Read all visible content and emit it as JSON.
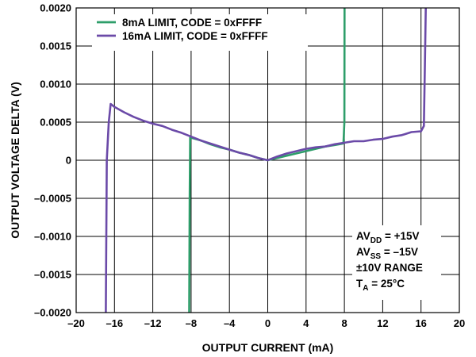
{
  "chart_data": {
    "type": "line",
    "xlabel": "OUTPUT CURRENT (mA)",
    "ylabel": "OUTPUT VOLTAGE DELTA (V)",
    "xlim": [
      -20,
      20
    ],
    "ylim": [
      -0.002,
      0.002
    ],
    "x_ticks": [
      -20,
      -16,
      -12,
      -8,
      -4,
      0,
      4,
      8,
      12,
      16,
      20
    ],
    "x_tick_labels": [
      "–20",
      "–16",
      "–12",
      "–8",
      "–4",
      "0",
      "4",
      "8",
      "12",
      "16",
      "20"
    ],
    "y_ticks": [
      0.002,
      0.0015,
      0.001,
      0.0005,
      0,
      -0.0005,
      -0.001,
      -0.0015,
      -0.002
    ],
    "y_tick_labels": [
      "0.0020",
      "0.0015",
      "0.0010",
      "0.0005",
      "0",
      "–0.0005",
      "–0.0010",
      "–0.0015",
      "–0.0020"
    ],
    "grid": true,
    "legend_position": "top-left",
    "series": [
      {
        "name": "8mA LIMIT, CODE = 0xFFFF",
        "color": "#2e9e6a",
        "points": [
          [
            -8.2,
            -0.002
          ],
          [
            -8.15,
            -0.0005
          ],
          [
            -8.1,
            0.0003
          ],
          [
            -7,
            0.00026
          ],
          [
            -6,
            0.00021
          ],
          [
            -5,
            0.00017
          ],
          [
            -4,
            0.00014
          ],
          [
            -3,
            0.0001
          ],
          [
            -2,
            7e-05
          ],
          [
            -1,
            3e-05
          ],
          [
            0,
            0.0
          ],
          [
            1,
            3e-05
          ],
          [
            2,
            6e-05
          ],
          [
            3,
            9e-05
          ],
          [
            4,
            0.00012
          ],
          [
            5,
            0.00015
          ],
          [
            6,
            0.00018
          ],
          [
            7,
            0.0002
          ],
          [
            7.9,
            0.00022
          ],
          [
            8,
            0.0005
          ],
          [
            8.02,
            0.002
          ]
        ]
      },
      {
        "name": "16mA LIMIT, CODE = 0xFFFF",
        "color": "#6b4aa8",
        "points": [
          [
            -16.9,
            -0.002
          ],
          [
            -16.85,
            -0.001
          ],
          [
            -16.8,
            0.0
          ],
          [
            -16.6,
            0.0005
          ],
          [
            -16.4,
            0.00074
          ],
          [
            -16,
            0.0007
          ],
          [
            -15,
            0.00063
          ],
          [
            -14,
            0.00057
          ],
          [
            -13,
            0.00052
          ],
          [
            -12,
            0.00048
          ],
          [
            -11,
            0.00045
          ],
          [
            -10,
            0.0004
          ],
          [
            -9,
            0.00036
          ],
          [
            -8,
            0.00031
          ],
          [
            -7,
            0.00026
          ],
          [
            -6,
            0.00022
          ],
          [
            -5,
            0.00018
          ],
          [
            -4,
            0.00014
          ],
          [
            -3,
            0.0001
          ],
          [
            -2,
            7e-05
          ],
          [
            -1,
            3e-05
          ],
          [
            0,
            0.0
          ],
          [
            1,
            5e-05
          ],
          [
            2,
            9e-05
          ],
          [
            3,
            0.00012
          ],
          [
            4,
            0.00015
          ],
          [
            5,
            0.00017
          ],
          [
            6,
            0.00018
          ],
          [
            7,
            0.00021
          ],
          [
            8,
            0.00023
          ],
          [
            9,
            0.00025
          ],
          [
            10,
            0.00025
          ],
          [
            11,
            0.00027
          ],
          [
            12,
            0.00028
          ],
          [
            13,
            0.00031
          ],
          [
            14,
            0.00033
          ],
          [
            15,
            0.00037
          ],
          [
            16,
            0.00038
          ],
          [
            16.3,
            0.00045
          ],
          [
            16.4,
            0.0012
          ],
          [
            16.5,
            0.002
          ]
        ]
      }
    ],
    "annotation_lines": [
      {
        "main": "AV",
        "sub": "DD",
        "rest": " = +15V"
      },
      {
        "main": "AV",
        "sub": "SS",
        "rest": " = –15V"
      },
      {
        "main": "±10V RANGE",
        "sub": "",
        "rest": ""
      },
      {
        "main": "T",
        "sub": "A",
        "rest": " = 25°C"
      }
    ]
  }
}
